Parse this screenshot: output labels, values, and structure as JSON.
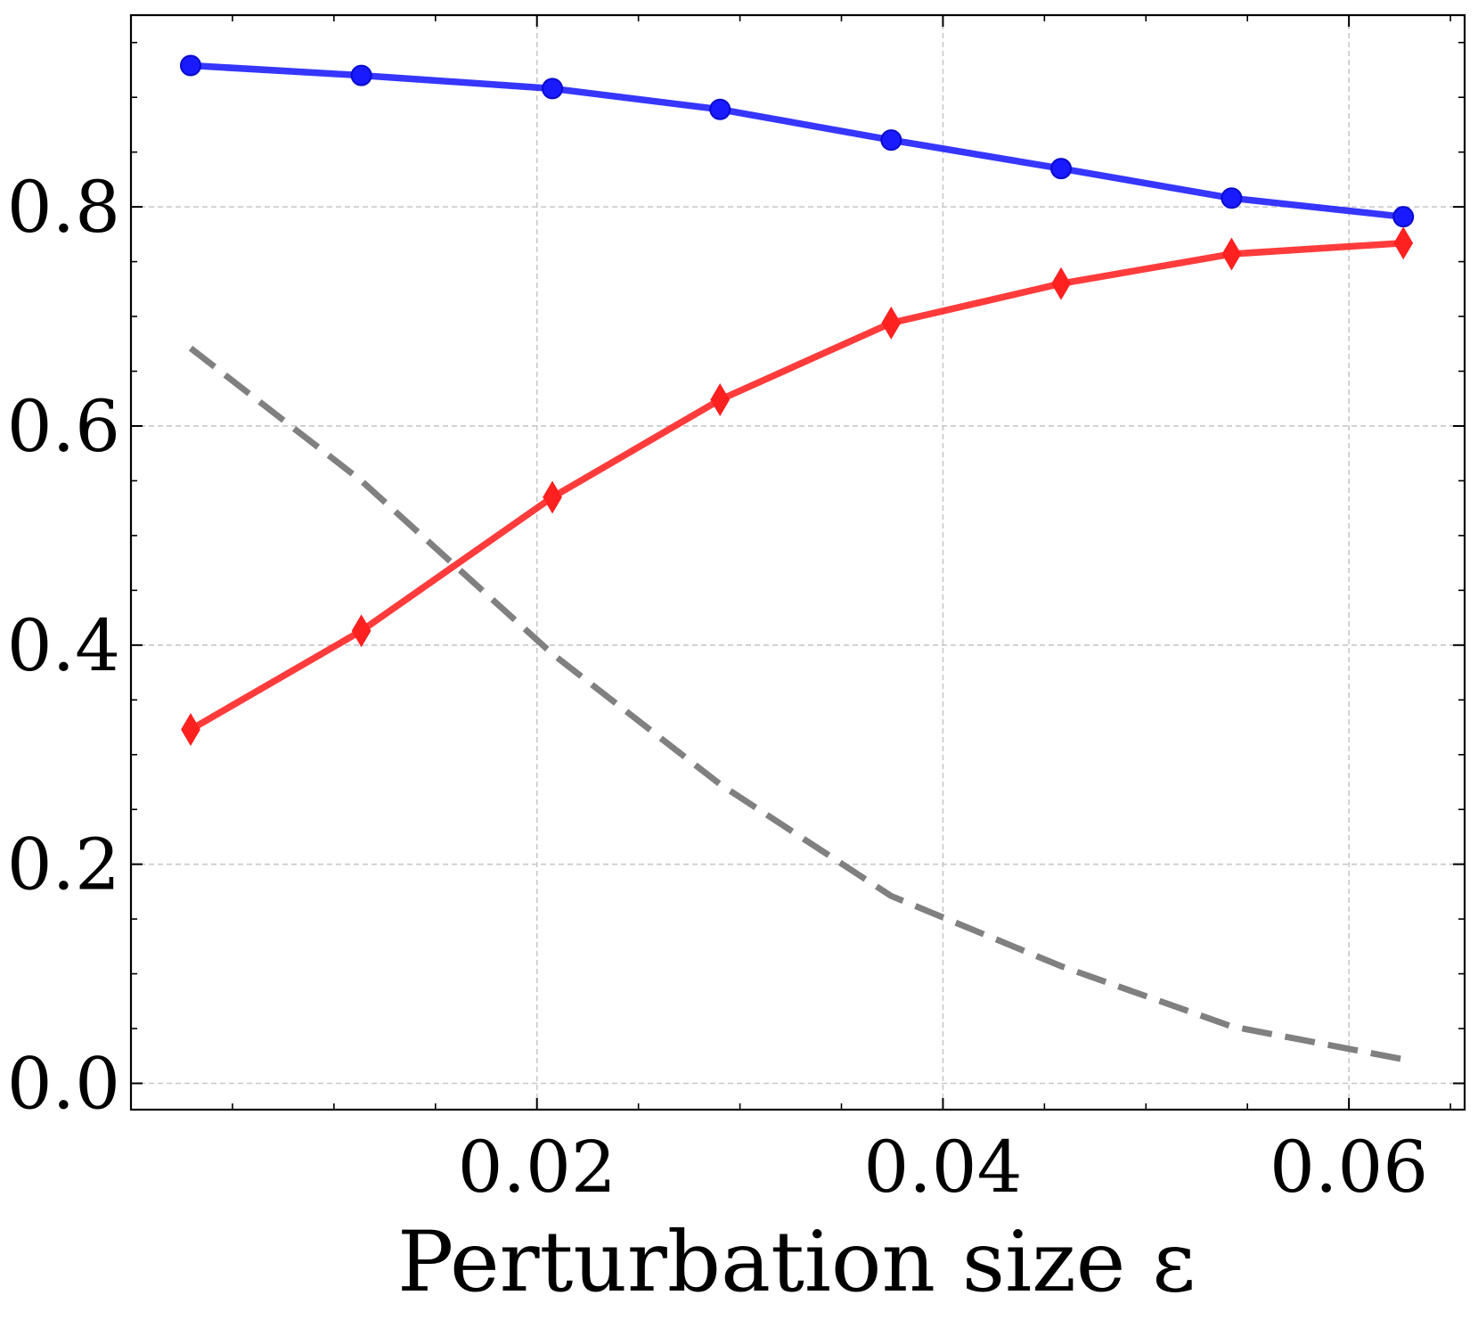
{
  "chart_data": {
    "type": "line",
    "title": "",
    "xlabel": "Perturbation size ε",
    "ylabel": "",
    "xlim": [
      0.0,
      0.0657
    ],
    "ylim": [
      -0.024,
      0.975
    ],
    "x_ticks": [
      0.02,
      0.04,
      0.06
    ],
    "x_tick_labels": [
      "0.02",
      "0.04",
      "0.06"
    ],
    "x_minor_ticks": [
      0.0,
      0.005,
      0.01,
      0.015,
      0.025,
      0.03,
      0.035,
      0.045,
      0.05,
      0.055,
      0.065
    ],
    "y_ticks": [
      0.0,
      0.2,
      0.4,
      0.6,
      0.8
    ],
    "y_tick_labels": [
      "0.0",
      "0.2",
      "0.4",
      "0.6",
      "0.8"
    ],
    "y_minor_ticks": [
      0.05,
      0.1,
      0.15,
      0.25,
      0.3,
      0.35,
      0.45,
      0.5,
      0.55,
      0.65,
      0.7,
      0.75,
      0.85,
      0.9,
      0.95
    ],
    "grid": true,
    "legend": "none",
    "x": [
      0.00294,
      0.01135,
      0.02076,
      0.02902,
      0.03745,
      0.04582,
      0.05422,
      0.06268
    ],
    "series": [
      {
        "color": "#1a1aff",
        "marker": "circle",
        "line_style": "solid",
        "values": [
          0.929,
          0.92,
          0.908,
          0.889,
          0.861,
          0.835,
          0.808,
          0.791
        ]
      },
      {
        "color": "#ff2020",
        "marker": "diamond",
        "line_style": "solid",
        "values": [
          0.323,
          0.413,
          0.535,
          0.624,
          0.694,
          0.73,
          0.757,
          0.767
        ]
      },
      {
        "color": "#808080",
        "marker": "none",
        "line_style": "dashed",
        "values": [
          0.671,
          0.55,
          0.392,
          0.273,
          0.171,
          0.107,
          0.052,
          0.022
        ]
      }
    ]
  }
}
